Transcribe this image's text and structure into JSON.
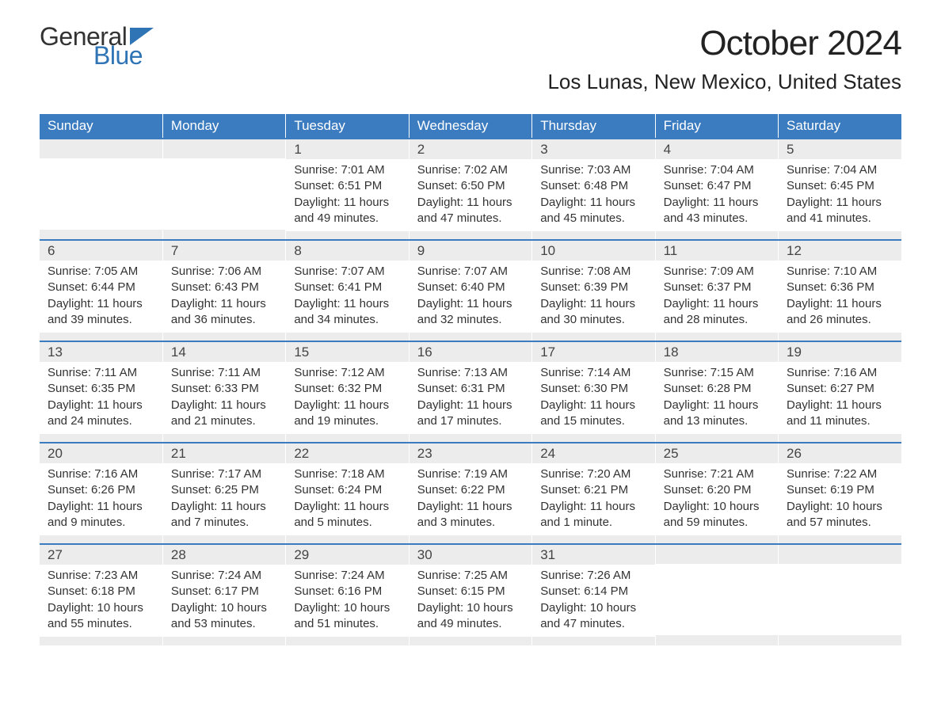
{
  "logo": {
    "text_general": "General",
    "text_blue": "Blue",
    "flag_color": "#2f74b5"
  },
  "title": "October 2024",
  "location": "Los Lunas, New Mexico, United States",
  "colors": {
    "header_bg": "#3b7bbf",
    "header_text": "#ffffff",
    "daynum_bg": "#ececec",
    "row_top_border": "#3b7bbf",
    "body_text": "#333333",
    "page_bg": "#ffffff"
  },
  "typography": {
    "title_fontsize": 44,
    "location_fontsize": 26,
    "header_fontsize": 17,
    "daynum_fontsize": 17,
    "body_fontsize": 15,
    "logo_fontsize": 32
  },
  "weekdays": [
    "Sunday",
    "Monday",
    "Tuesday",
    "Wednesday",
    "Thursday",
    "Friday",
    "Saturday"
  ],
  "weeks": [
    [
      {
        "empty": true
      },
      {
        "empty": true
      },
      {
        "day": "1",
        "sunrise": "Sunrise: 7:01 AM",
        "sunset": "Sunset: 6:51 PM",
        "daylight1": "Daylight: 11 hours",
        "daylight2": "and 49 minutes."
      },
      {
        "day": "2",
        "sunrise": "Sunrise: 7:02 AM",
        "sunset": "Sunset: 6:50 PM",
        "daylight1": "Daylight: 11 hours",
        "daylight2": "and 47 minutes."
      },
      {
        "day": "3",
        "sunrise": "Sunrise: 7:03 AM",
        "sunset": "Sunset: 6:48 PM",
        "daylight1": "Daylight: 11 hours",
        "daylight2": "and 45 minutes."
      },
      {
        "day": "4",
        "sunrise": "Sunrise: 7:04 AM",
        "sunset": "Sunset: 6:47 PM",
        "daylight1": "Daylight: 11 hours",
        "daylight2": "and 43 minutes."
      },
      {
        "day": "5",
        "sunrise": "Sunrise: 7:04 AM",
        "sunset": "Sunset: 6:45 PM",
        "daylight1": "Daylight: 11 hours",
        "daylight2": "and 41 minutes."
      }
    ],
    [
      {
        "day": "6",
        "sunrise": "Sunrise: 7:05 AM",
        "sunset": "Sunset: 6:44 PM",
        "daylight1": "Daylight: 11 hours",
        "daylight2": "and 39 minutes."
      },
      {
        "day": "7",
        "sunrise": "Sunrise: 7:06 AM",
        "sunset": "Sunset: 6:43 PM",
        "daylight1": "Daylight: 11 hours",
        "daylight2": "and 36 minutes."
      },
      {
        "day": "8",
        "sunrise": "Sunrise: 7:07 AM",
        "sunset": "Sunset: 6:41 PM",
        "daylight1": "Daylight: 11 hours",
        "daylight2": "and 34 minutes."
      },
      {
        "day": "9",
        "sunrise": "Sunrise: 7:07 AM",
        "sunset": "Sunset: 6:40 PM",
        "daylight1": "Daylight: 11 hours",
        "daylight2": "and 32 minutes."
      },
      {
        "day": "10",
        "sunrise": "Sunrise: 7:08 AM",
        "sunset": "Sunset: 6:39 PM",
        "daylight1": "Daylight: 11 hours",
        "daylight2": "and 30 minutes."
      },
      {
        "day": "11",
        "sunrise": "Sunrise: 7:09 AM",
        "sunset": "Sunset: 6:37 PM",
        "daylight1": "Daylight: 11 hours",
        "daylight2": "and 28 minutes."
      },
      {
        "day": "12",
        "sunrise": "Sunrise: 7:10 AM",
        "sunset": "Sunset: 6:36 PM",
        "daylight1": "Daylight: 11 hours",
        "daylight2": "and 26 minutes."
      }
    ],
    [
      {
        "day": "13",
        "sunrise": "Sunrise: 7:11 AM",
        "sunset": "Sunset: 6:35 PM",
        "daylight1": "Daylight: 11 hours",
        "daylight2": "and 24 minutes."
      },
      {
        "day": "14",
        "sunrise": "Sunrise: 7:11 AM",
        "sunset": "Sunset: 6:33 PM",
        "daylight1": "Daylight: 11 hours",
        "daylight2": "and 21 minutes."
      },
      {
        "day": "15",
        "sunrise": "Sunrise: 7:12 AM",
        "sunset": "Sunset: 6:32 PM",
        "daylight1": "Daylight: 11 hours",
        "daylight2": "and 19 minutes."
      },
      {
        "day": "16",
        "sunrise": "Sunrise: 7:13 AM",
        "sunset": "Sunset: 6:31 PM",
        "daylight1": "Daylight: 11 hours",
        "daylight2": "and 17 minutes."
      },
      {
        "day": "17",
        "sunrise": "Sunrise: 7:14 AM",
        "sunset": "Sunset: 6:30 PM",
        "daylight1": "Daylight: 11 hours",
        "daylight2": "and 15 minutes."
      },
      {
        "day": "18",
        "sunrise": "Sunrise: 7:15 AM",
        "sunset": "Sunset: 6:28 PM",
        "daylight1": "Daylight: 11 hours",
        "daylight2": "and 13 minutes."
      },
      {
        "day": "19",
        "sunrise": "Sunrise: 7:16 AM",
        "sunset": "Sunset: 6:27 PM",
        "daylight1": "Daylight: 11 hours",
        "daylight2": "and 11 minutes."
      }
    ],
    [
      {
        "day": "20",
        "sunrise": "Sunrise: 7:16 AM",
        "sunset": "Sunset: 6:26 PM",
        "daylight1": "Daylight: 11 hours",
        "daylight2": "and 9 minutes."
      },
      {
        "day": "21",
        "sunrise": "Sunrise: 7:17 AM",
        "sunset": "Sunset: 6:25 PM",
        "daylight1": "Daylight: 11 hours",
        "daylight2": "and 7 minutes."
      },
      {
        "day": "22",
        "sunrise": "Sunrise: 7:18 AM",
        "sunset": "Sunset: 6:24 PM",
        "daylight1": "Daylight: 11 hours",
        "daylight2": "and 5 minutes."
      },
      {
        "day": "23",
        "sunrise": "Sunrise: 7:19 AM",
        "sunset": "Sunset: 6:22 PM",
        "daylight1": "Daylight: 11 hours",
        "daylight2": "and 3 minutes."
      },
      {
        "day": "24",
        "sunrise": "Sunrise: 7:20 AM",
        "sunset": "Sunset: 6:21 PM",
        "daylight1": "Daylight: 11 hours",
        "daylight2": "and 1 minute."
      },
      {
        "day": "25",
        "sunrise": "Sunrise: 7:21 AM",
        "sunset": "Sunset: 6:20 PM",
        "daylight1": "Daylight: 10 hours",
        "daylight2": "and 59 minutes."
      },
      {
        "day": "26",
        "sunrise": "Sunrise: 7:22 AM",
        "sunset": "Sunset: 6:19 PM",
        "daylight1": "Daylight: 10 hours",
        "daylight2": "and 57 minutes."
      }
    ],
    [
      {
        "day": "27",
        "sunrise": "Sunrise: 7:23 AM",
        "sunset": "Sunset: 6:18 PM",
        "daylight1": "Daylight: 10 hours",
        "daylight2": "and 55 minutes."
      },
      {
        "day": "28",
        "sunrise": "Sunrise: 7:24 AM",
        "sunset": "Sunset: 6:17 PM",
        "daylight1": "Daylight: 10 hours",
        "daylight2": "and 53 minutes."
      },
      {
        "day": "29",
        "sunrise": "Sunrise: 7:24 AM",
        "sunset": "Sunset: 6:16 PM",
        "daylight1": "Daylight: 10 hours",
        "daylight2": "and 51 minutes."
      },
      {
        "day": "30",
        "sunrise": "Sunrise: 7:25 AM",
        "sunset": "Sunset: 6:15 PM",
        "daylight1": "Daylight: 10 hours",
        "daylight2": "and 49 minutes."
      },
      {
        "day": "31",
        "sunrise": "Sunrise: 7:26 AM",
        "sunset": "Sunset: 6:14 PM",
        "daylight1": "Daylight: 10 hours",
        "daylight2": "and 47 minutes."
      },
      {
        "empty": true
      },
      {
        "empty": true
      }
    ]
  ]
}
